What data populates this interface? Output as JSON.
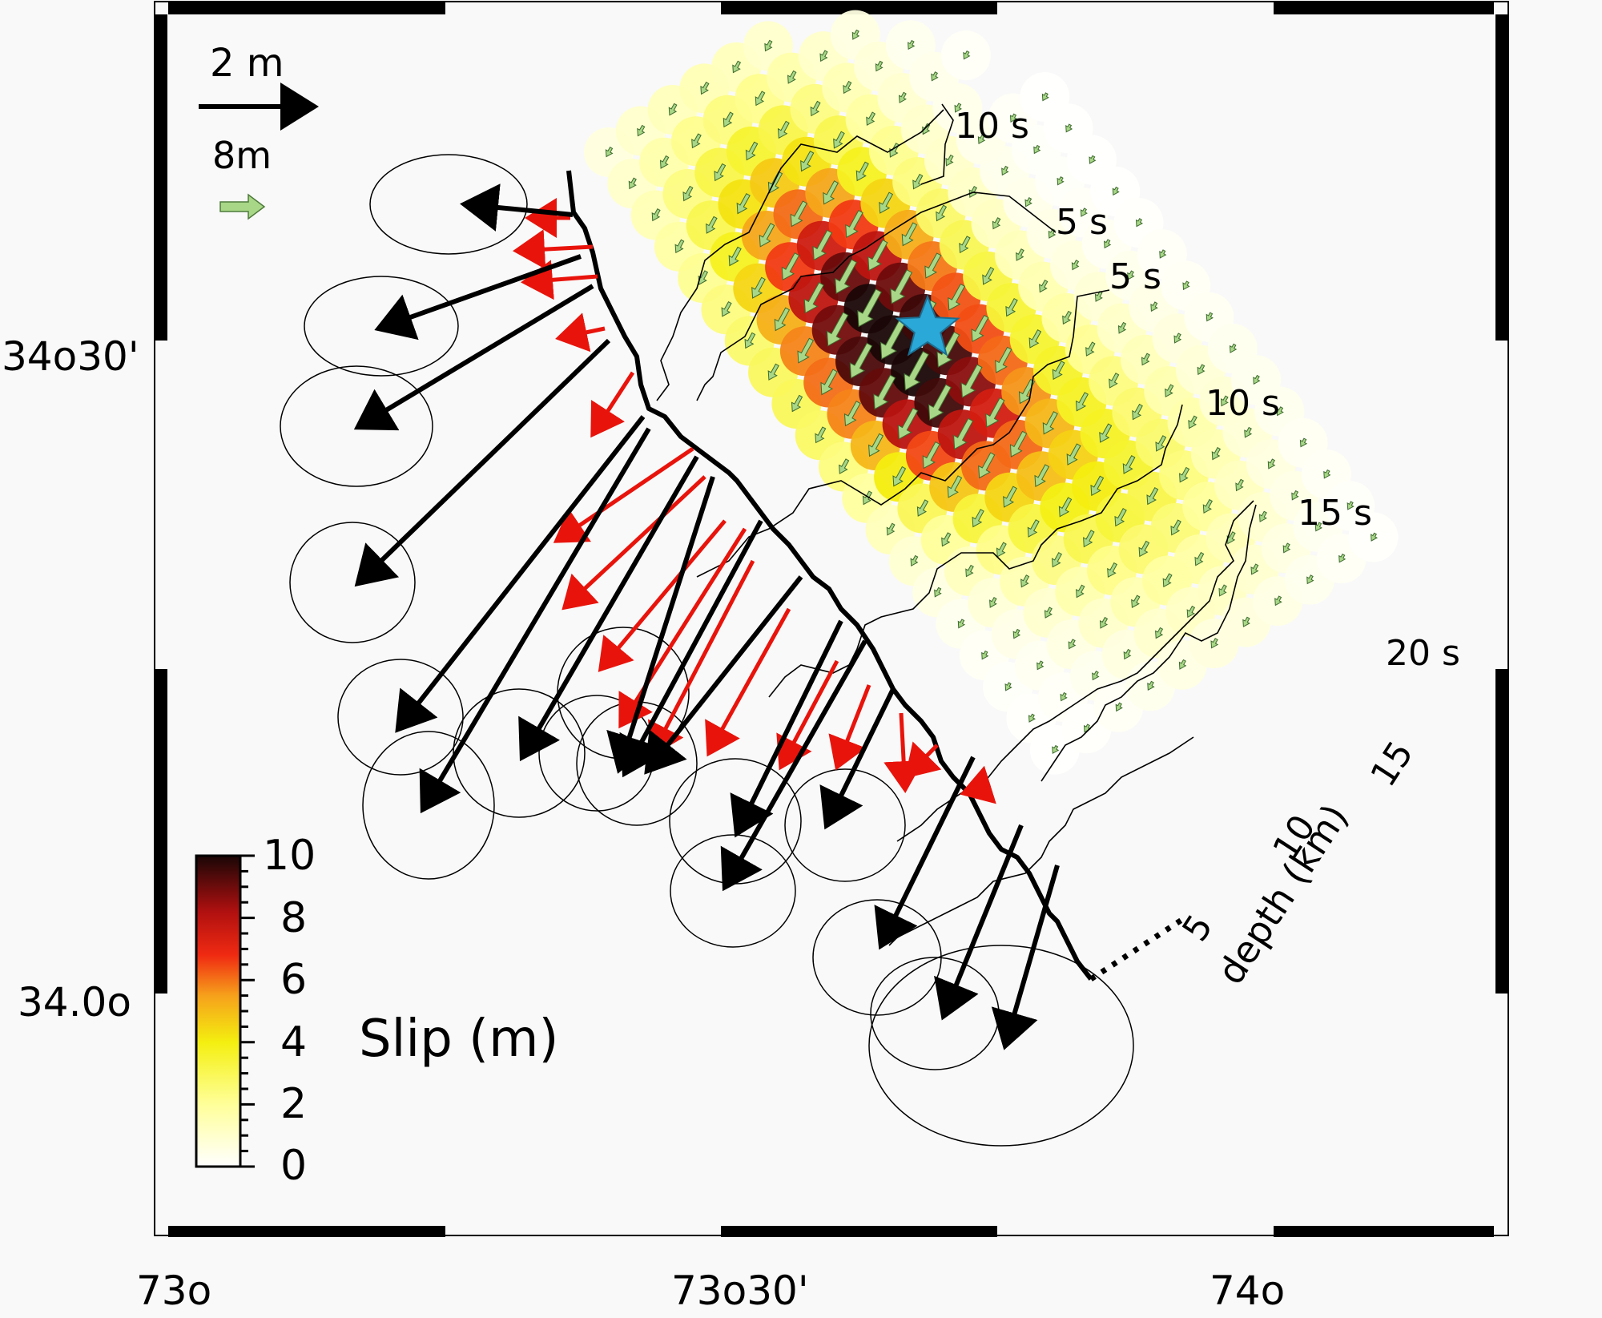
{
  "map": {
    "lat_labels": [
      "34o30'",
      "34.0o"
    ],
    "lon_labels": [
      "73o",
      "73o30'",
      "74o"
    ],
    "scale": {
      "black_label": "2 m",
      "green_label": "8m"
    },
    "contours": [
      "10 s",
      "5 s",
      "5 s",
      "10 s",
      "15 s",
      "20 s"
    ],
    "depth_ticks": [
      "5",
      "10",
      "15"
    ],
    "depth_label": "depth (km)",
    "colorbar": {
      "title": "Slip (m)",
      "tick_labels": [
        "10",
        "8",
        "6",
        "4",
        "2",
        "0"
      ],
      "range": [
        0,
        10
      ]
    },
    "colors": {
      "observed_vector": "#000000",
      "model_vector": "#e8140c",
      "slip_vector": "#a8d887",
      "epicenter_star": "#2aa8d8"
    }
  }
}
